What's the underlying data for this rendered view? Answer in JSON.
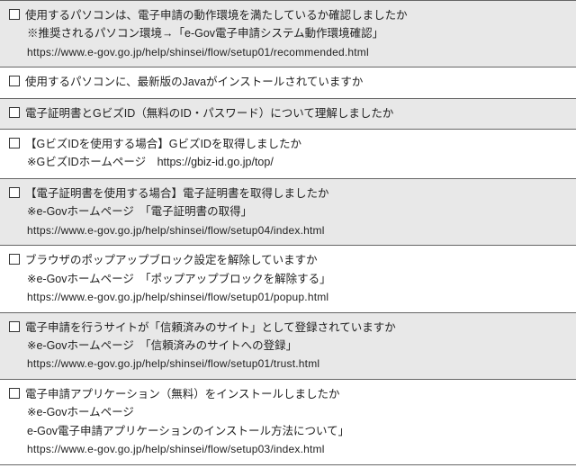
{
  "items": [
    {
      "q": "使用するパソコンは、電子申請の動作環境を満たしているか確認しましたか",
      "alt": true,
      "subs": [
        "※推奨されるパソコン環境→「e-Gov電子申請システム動作環境確認」",
        "https://www.e-gov.go.jp/help/shinsei/flow/setup01/recommended.html"
      ]
    },
    {
      "q": "使用するパソコンに、最新版のJavaがインストールされていますか",
      "alt": false,
      "subs": []
    },
    {
      "q": "電子証明書とGビズID（無料のID・パスワード）について理解しましたか",
      "alt": true,
      "subs": []
    },
    {
      "q": "【GビズIDを使用する場合】GビズIDを取得しましたか",
      "alt": false,
      "subs": [
        "※GビズIDホームページ　https://gbiz-id.go.jp/top/"
      ]
    },
    {
      "q": "【電子証明書を使用する場合】電子証明書を取得しましたか",
      "alt": true,
      "subs": [
        "※e-Govホームページ　「電子証明書の取得」",
        "https://www.e-gov.go.jp/help/shinsei/flow/setup04/index.html"
      ]
    },
    {
      "q": "ブラウザのポップアップブロック設定を解除していますか",
      "alt": false,
      "subs": [
        "※e-Govホームページ　「ポップアップブロックを解除する」",
        "https://www.e-gov.go.jp/help/shinsei/flow/setup01/popup.html"
      ]
    },
    {
      "q": "電子申請を行うサイトが「信頼済みのサイト」として登録されていますか",
      "alt": true,
      "subs": [
        "※e-Govホームページ　「信頼済みのサイトへの登録」",
        "https://www.e-gov.go.jp/help/shinsei/flow/setup01/trust.html"
      ]
    },
    {
      "q": "電子申請アプリケーション（無料）をインストールしましたか",
      "alt": false,
      "subs": [
        "※e-Govホームページ",
        "e-Gov電子申請アプリケーションのインストール方法について」",
        "https://www.e-gov.go.jp/help/shinsei/flow/setup03/index.html"
      ]
    }
  ]
}
